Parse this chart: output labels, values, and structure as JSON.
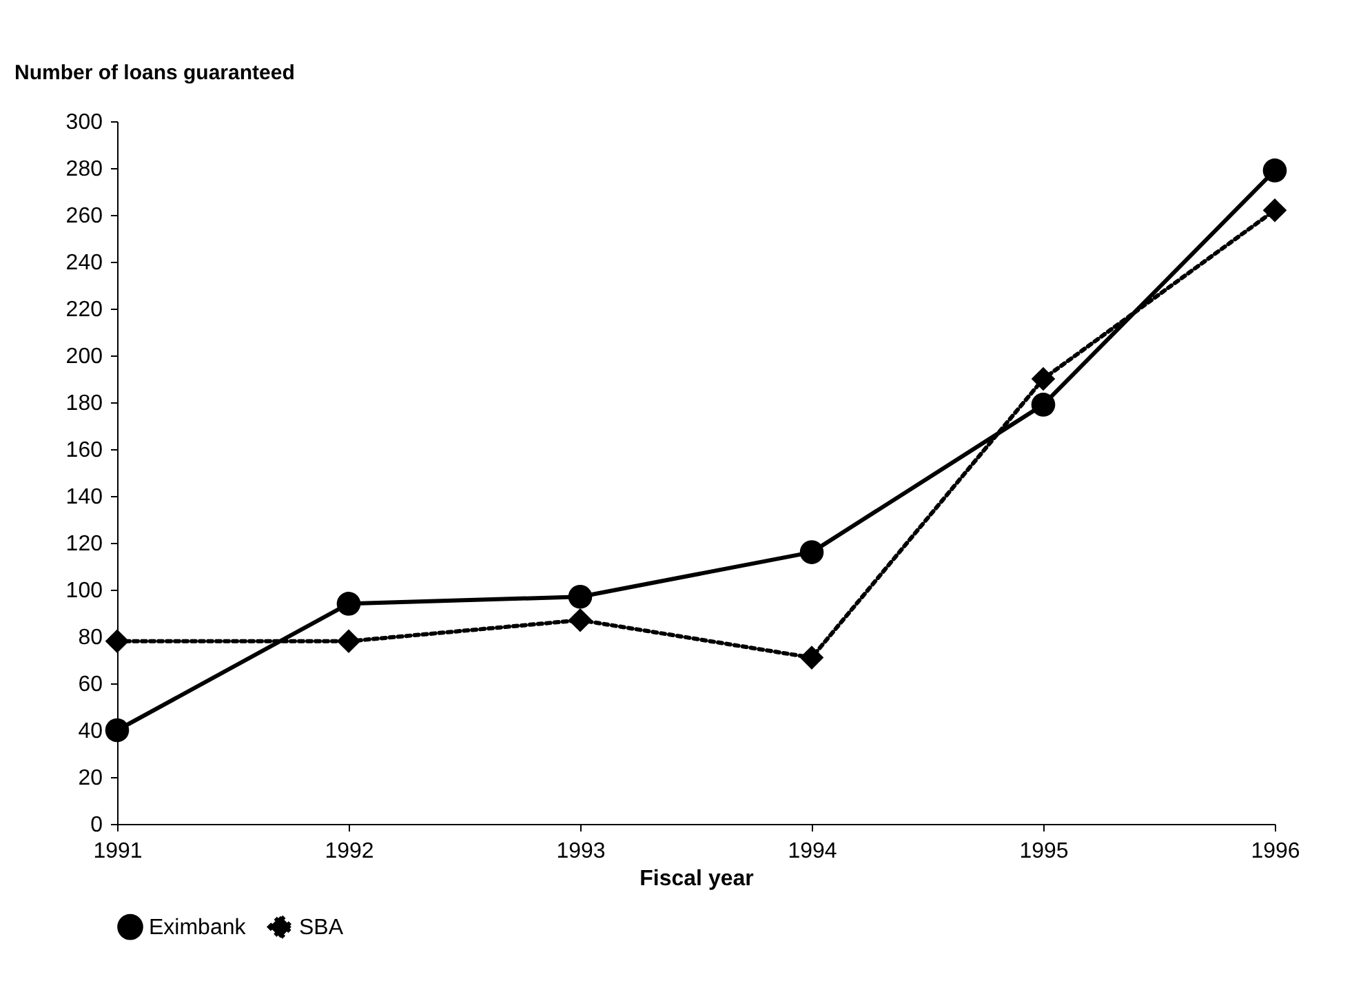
{
  "chart_data": {
    "type": "line",
    "xlabel": "Fiscal year",
    "ylabel": "Number of loans guaranteed",
    "x": [
      1991,
      1992,
      1993,
      1994,
      1995,
      1996
    ],
    "series": [
      {
        "name": "Eximbank",
        "color": "#000000",
        "marker": "circle",
        "line_style": "solid",
        "values": [
          40,
          94,
          97,
          116,
          179,
          279
        ]
      },
      {
        "name": "SBA",
        "color": "#000000",
        "marker": "diamond",
        "line_style": "dotted",
        "values": [
          78,
          78,
          87,
          71,
          190,
          262
        ]
      }
    ],
    "xlim": [
      1991,
      1996
    ],
    "xticks": [
      1991,
      1992,
      1993,
      1994,
      1995,
      1996
    ],
    "ylim": [
      0,
      300
    ],
    "yticks": [
      0,
      20,
      40,
      60,
      80,
      100,
      120,
      140,
      160,
      180,
      200,
      220,
      240,
      260,
      280,
      300
    ],
    "grid": false,
    "legend": "bottom"
  }
}
